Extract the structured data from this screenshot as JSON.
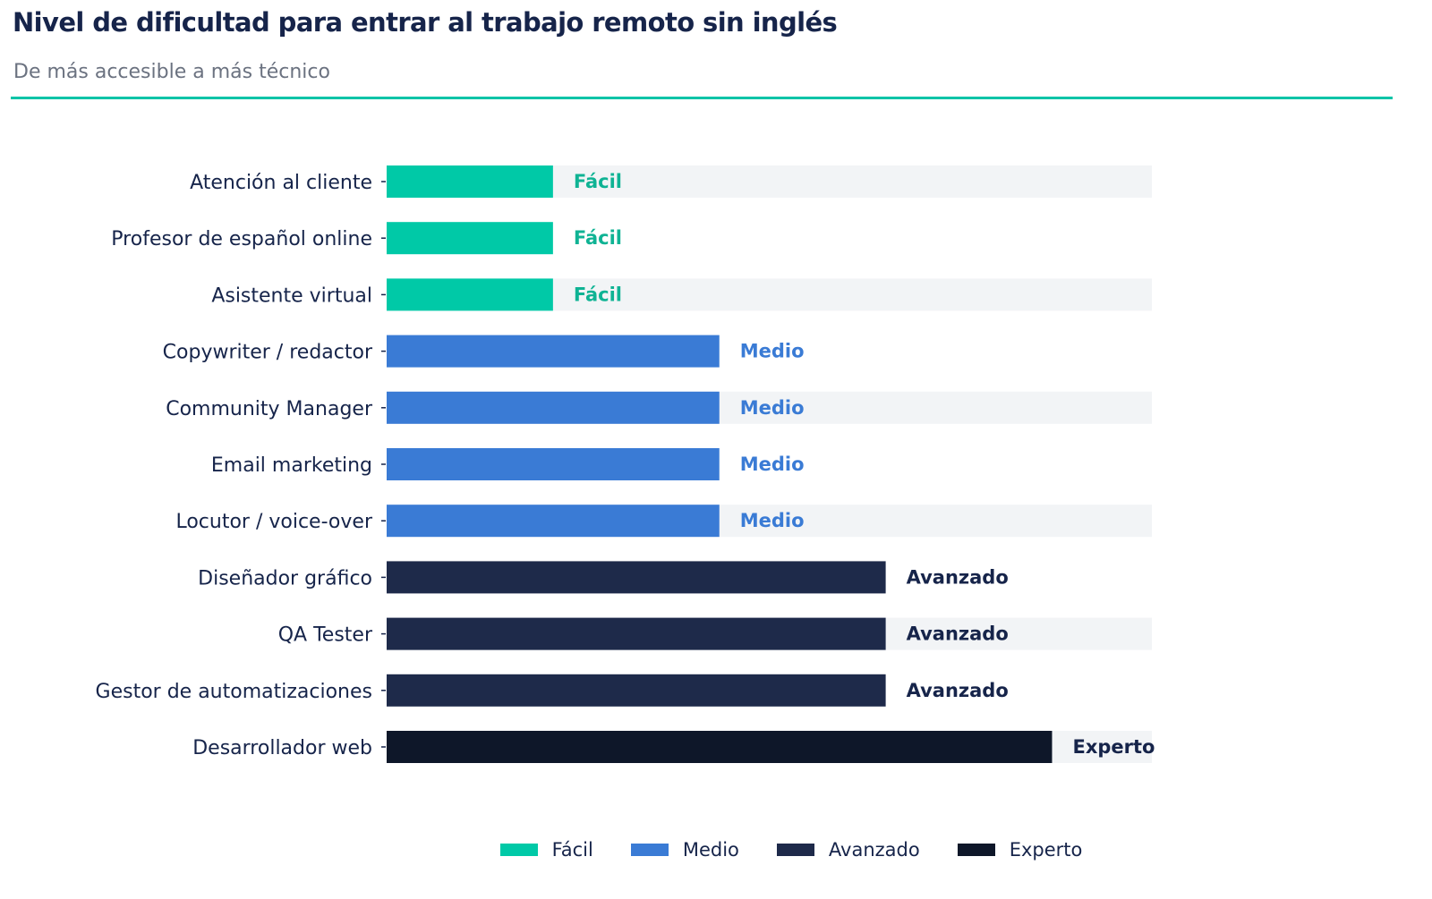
{
  "title": "Nivel de dificultad para entrar al trabajo remoto sin inglés",
  "subtitle": "De más accesible a más técnico",
  "colors": {
    "accent_rule": "#00c4a7",
    "band": "#f2f4f6",
    "Fácil": "#00c9a7",
    "Medio": "#3a7bd5",
    "Avanzado": "#1e2a4a",
    "Experto": "#0e1729",
    "label_Fácil": "#0fb394",
    "label_Medio": "#3a7bd5",
    "label_Avanzado": "#16244a",
    "label_Experto": "#16244a"
  },
  "chart_data": {
    "type": "bar",
    "orientation": "horizontal",
    "title": "Nivel de dificultad para entrar al trabajo remoto sin inglés",
    "subtitle": "De más accesible a más técnico",
    "categories": [
      "Atención al cliente",
      "Profesor de español online",
      "Asistente virtual",
      "Copywriter / redactor",
      "Community Manager",
      "Email marketing",
      "Locutor / voice-over",
      "Diseñador gráfico",
      "QA Tester",
      "Gestor de automatizaciones",
      "Desarrollador web"
    ],
    "values": [
      1,
      1,
      1,
      2,
      2,
      2,
      2,
      3,
      3,
      3,
      4
    ],
    "levels": [
      "Fácil",
      "Fácil",
      "Fácil",
      "Medio",
      "Medio",
      "Medio",
      "Medio",
      "Avanzado",
      "Avanzado",
      "Avanzado",
      "Experto"
    ],
    "xlim": [
      0,
      4.6
    ],
    "legend": {
      "position": "bottom",
      "entries": [
        "Fácil",
        "Medio",
        "Avanzado",
        "Experto"
      ]
    },
    "grid": false,
    "xlabel": "",
    "ylabel": ""
  }
}
